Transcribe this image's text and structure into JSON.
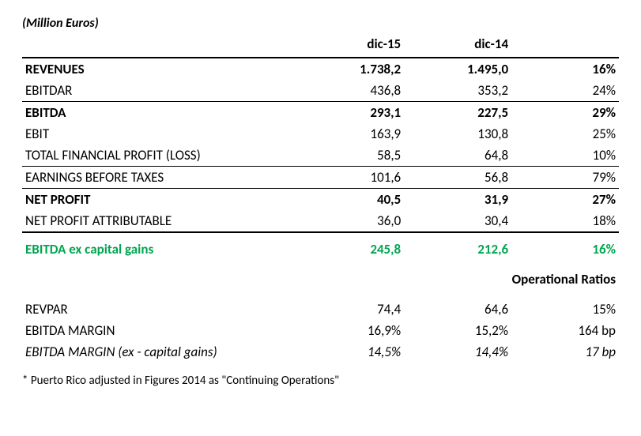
{
  "table": {
    "subtitle": "(Million Euros)",
    "columns": [
      "",
      "dic-15",
      "dic-14",
      ""
    ],
    "rows": [
      {
        "label": "REVENUES",
        "v1": "1.738,2",
        "v2": "1.495,0",
        "v3": "16%",
        "style": "bold"
      },
      {
        "label": "EBITDAR",
        "v1": "436,8",
        "v2": "353,2",
        "v3": "24%",
        "style": "underline"
      },
      {
        "label": "EBITDA",
        "v1": "293,1",
        "v2": "227,5",
        "v3": "29%",
        "style": "bold"
      },
      {
        "label": "EBIT",
        "v1": "163,9",
        "v2": "130,8",
        "v3": "25%"
      },
      {
        "label": "TOTAL FINANCIAL PROFIT (LOSS)",
        "v1": "58,5",
        "v2": "64,8",
        "v3": "10%",
        "style": "underline"
      },
      {
        "label": "EARNINGS BEFORE TAXES",
        "v1": "101,6",
        "v2": "56,8",
        "v3": "79%",
        "style": "underline"
      },
      {
        "label": "NET PROFIT",
        "v1": "40,5",
        "v2": "31,9",
        "v3": "27%",
        "style": "bold"
      },
      {
        "label": "NET PROFIT ATTRIBUTABLE",
        "v1": "36,0",
        "v2": "30,4",
        "v3": "18%",
        "style": "thick-underline"
      },
      {
        "label": "EBITDA ex capital gains",
        "v1": "245,8",
        "v2": "212,6",
        "v3": "16%",
        "style": "green spacer"
      }
    ],
    "section_title": "Operational Ratios",
    "ratio_rows": [
      {
        "label": "REVPAR",
        "v1": "74,4",
        "v2": "64,6",
        "v3": "15%"
      },
      {
        "label": "EBITDA MARGIN",
        "v1": "16,9%",
        "v2": "15,2%",
        "v3": "164 bp"
      },
      {
        "label": "EBITDA MARGIN (ex - capital gains)",
        "v1": "14,5%",
        "v2": "14,4%",
        "v3": "17 bp",
        "style": "italic"
      }
    ],
    "footnote": "* Puerto Rico adjusted in Figures 2014 as \"Continuing Operations\"",
    "colors": {
      "green": "#00a550",
      "text": "#000000",
      "background": "#ffffff",
      "border": "#000000"
    }
  }
}
